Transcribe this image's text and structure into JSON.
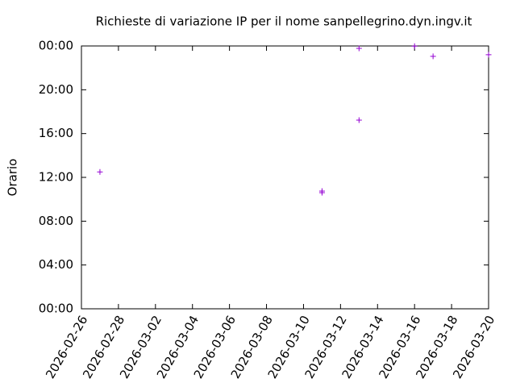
{
  "chart_data": {
    "type": "scatter",
    "title": "Richieste di variazione IP per il nome sanpellegrino.dyn.ingv.it",
    "y_label": "Orario",
    "x": [
      "2026-02-27",
      "2026-03-11",
      "2026-03-11",
      "2026-03-13",
      "2026-03-13",
      "2026-03-16",
      "2026-03-17",
      "2026-03-20"
    ],
    "values": [
      12.5,
      10.75,
      10.6,
      17.23,
      23.78,
      23.98,
      23.05,
      23.2
    ],
    "color": "#9400d3",
    "xlim": [
      "2026-02-26",
      "2026-03-20"
    ],
    "xticks": [
      "2026-02-26",
      "2026-02-28",
      "2026-03-02",
      "2026-03-04",
      "2026-03-06",
      "2026-03-08",
      "2026-03-10",
      "2026-03-12",
      "2026-03-14",
      "2026-03-16",
      "2026-03-18",
      "2026-03-20"
    ],
    "ylim": [
      0,
      24
    ],
    "yticks": [
      {
        "value": 0,
        "label": "00:00"
      },
      {
        "value": 4,
        "label": "04:00"
      },
      {
        "value": 8,
        "label": "08:00"
      },
      {
        "value": 12,
        "label": "12:00"
      },
      {
        "value": 16,
        "label": "16:00"
      },
      {
        "value": 20,
        "label": "20:00"
      },
      {
        "value": 24,
        "label": "00:00"
      }
    ],
    "grid": false
  }
}
